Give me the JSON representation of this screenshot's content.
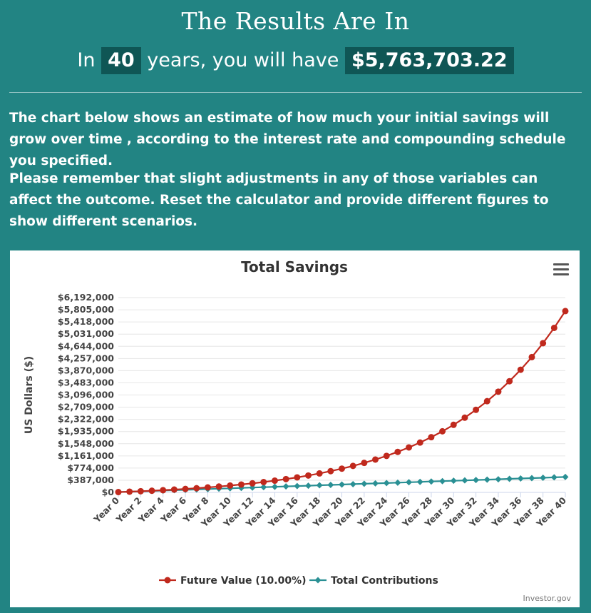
{
  "header": {
    "title": "The Results Are In",
    "pre": "In",
    "years": "40",
    "mid": "years, you will have",
    "amount": "$5,763,703.22"
  },
  "paragraphs": [
    "The chart below shows an estimate of how much your initial savings will grow over time , according to the interest rate and compounding schedule you specified.",
    "Please remember that slight adjustments in any of those variables can affect the outcome. Reset the calculator and provide different figures to show different scenarios."
  ],
  "credits": "Investor.gov",
  "chart_data": {
    "type": "line",
    "title": "Total Savings",
    "xlabel": "",
    "ylabel": "US Dollars ($)",
    "ylim": [
      0,
      6192000
    ],
    "yticks": [
      0,
      387000,
      774000,
      1161000,
      1548000,
      1935000,
      2322000,
      2709000,
      3096000,
      3483000,
      3870000,
      4257000,
      4644000,
      5031000,
      5418000,
      5805000,
      6192000
    ],
    "ytick_labels": [
      "$0",
      "$387,000",
      "$774,000",
      "$1,161,000",
      "$1,548,000",
      "$1,935,000",
      "$2,322,000",
      "$2,709,000",
      "$3,096,000",
      "$3,483,000",
      "$3,870,000",
      "$4,257,000",
      "$4,644,000",
      "$5,031,000",
      "$5,418,000",
      "$5,805,000",
      "$6,192,000"
    ],
    "categories": [
      "Year 0",
      "Year 1",
      "Year 2",
      "Year 3",
      "Year 4",
      "Year 5",
      "Year 6",
      "Year 7",
      "Year 8",
      "Year 9",
      "Year 10",
      "Year 11",
      "Year 12",
      "Year 13",
      "Year 14",
      "Year 15",
      "Year 16",
      "Year 17",
      "Year 18",
      "Year 19",
      "Year 20",
      "Year 21",
      "Year 22",
      "Year 23",
      "Year 24",
      "Year 25",
      "Year 26",
      "Year 27",
      "Year 28",
      "Year 29",
      "Year 30",
      "Year 31",
      "Year 32",
      "Year 33",
      "Year 34",
      "Year 35",
      "Year 36",
      "Year 37",
      "Year 38",
      "Year 39",
      "Year 40"
    ],
    "xtick_labels": [
      "Year 0",
      "Year 2",
      "Year 4",
      "Year 6",
      "Year 8",
      "Year 10",
      "Year 12",
      "Year 14",
      "Year 16",
      "Year 18",
      "Year 20",
      "Year 22",
      "Year 24",
      "Year 26",
      "Year 28",
      "Year 30",
      "Year 32",
      "Year 34",
      "Year 36",
      "Year 38",
      "Year 40"
    ],
    "grid": true,
    "legend_position": "bottom-center",
    "series": [
      {
        "name": "Future Value (10.00%)",
        "color": "#c0291d",
        "marker": "circle",
        "values": [
          10000,
          23000,
          37300,
          53030,
          70333,
          89366,
          110303,
          133333,
          158666,
          186533,
          217186,
          250905,
          287995,
          328795,
          373674,
          423042,
          477346,
          537081,
          602789,
          675068,
          754575,
          842032,
          938236,
          1044059,
          1160465,
          1288512,
          1429363,
          1584299,
          1754729,
          1942202,
          2148422,
          2375264,
          2624791,
          2899270,
          3201197,
          3533317,
          3898648,
          4300513,
          4742565,
          5228821,
          5763703
        ]
      },
      {
        "name": "Total Contributions",
        "color": "#2a9094",
        "marker": "diamond",
        "values": [
          10000,
          22000,
          34000,
          46000,
          58000,
          70000,
          82000,
          94000,
          106000,
          118000,
          130000,
          142000,
          154000,
          166000,
          178000,
          190000,
          202000,
          214000,
          226000,
          238000,
          250000,
          262000,
          274000,
          286000,
          298000,
          310000,
          322000,
          334000,
          346000,
          358000,
          370000,
          382000,
          394000,
          406000,
          418000,
          430000,
          442000,
          454000,
          466000,
          478000,
          490000
        ]
      }
    ]
  }
}
